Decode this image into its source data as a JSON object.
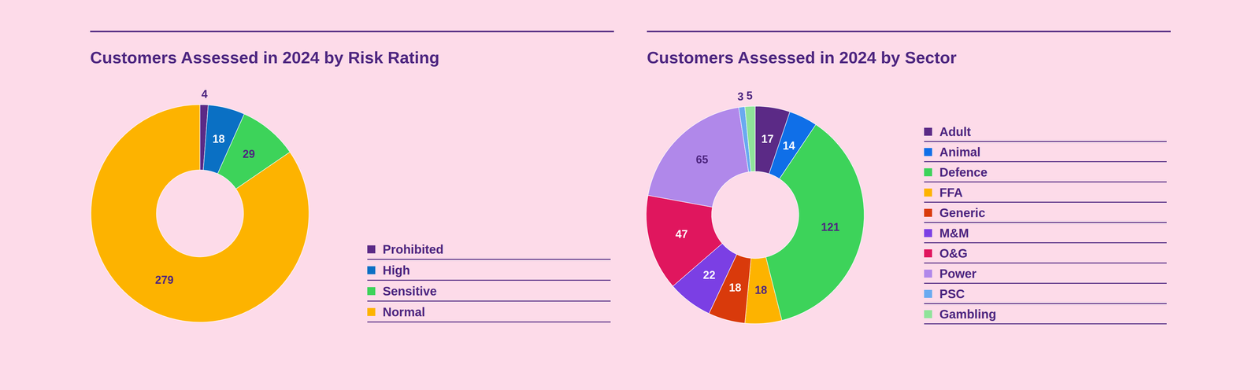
{
  "chart_data": [
    {
      "type": "doughnut",
      "title": "Customers Assessed in 2024 by Risk Rating",
      "categories": [
        "Prohibited",
        "High",
        "Sensitive",
        "Normal"
      ],
      "values": [
        4,
        18,
        29,
        279
      ],
      "colors": [
        "#5b2a86",
        "#0a70c4",
        "#3dd35a",
        "#fdb300"
      ],
      "data_labels": true,
      "legend": "right"
    },
    {
      "type": "doughnut",
      "title": "Customers Assessed in 2024 by Sector",
      "categories": [
        "Adult",
        "Animal",
        "Defence",
        "FFA",
        "Generic",
        "M&M",
        "O&G",
        "Power",
        "PSC",
        "Gambling"
      ],
      "values": [
        17,
        14,
        121,
        18,
        18,
        22,
        47,
        65,
        3,
        5
      ],
      "colors": [
        "#5b2a86",
        "#0f6fe8",
        "#3dd35a",
        "#fdb300",
        "#d93a0b",
        "#7b3fe4",
        "#e0165e",
        "#b088ea",
        "#6aaaf0",
        "#8fe39a"
      ],
      "data_labels": true,
      "legend": "right"
    }
  ]
}
